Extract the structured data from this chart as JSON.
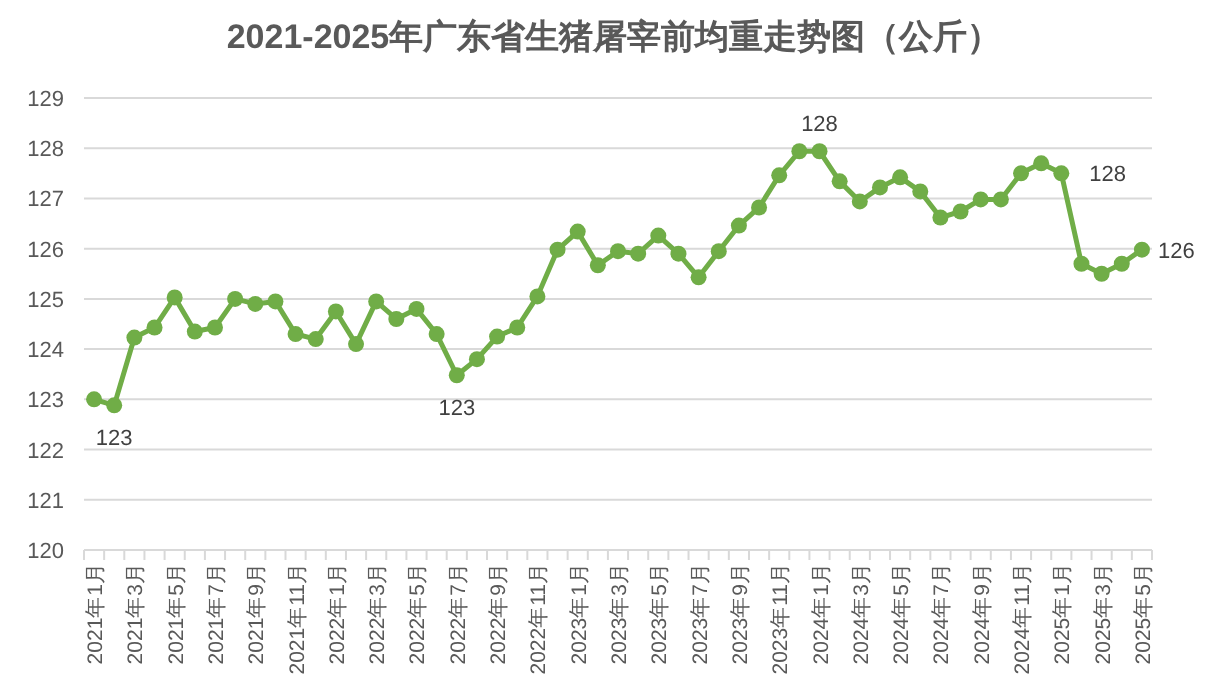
{
  "chart_data": {
    "type": "line",
    "title": "2021-2025年广东省生猪屠宰前均重走势图（公斤）",
    "categories": [
      "2021年1月",
      null,
      "2021年3月",
      null,
      "2021年5月",
      null,
      "2021年7月",
      null,
      "2021年9月",
      null,
      "2021年11月",
      null,
      "2022年1月",
      null,
      "2022年3月",
      null,
      "2022年5月",
      null,
      "2022年7月",
      null,
      "2022年9月",
      null,
      "2022年11月",
      null,
      "2023年1月",
      null,
      "2023年3月",
      null,
      "2023年5月",
      null,
      "2023年7月",
      null,
      "2023年9月",
      null,
      "2023年11月",
      null,
      "2024年1月",
      null,
      "2024年3月",
      null,
      "2024年5月",
      null,
      "2024年7月",
      null,
      "2024年9月",
      null,
      "2024年11月",
      null,
      "2025年1月",
      null,
      "2025年3月",
      null,
      "2025年5月"
    ],
    "series": [
      {
        "color": "#70ad47",
        "values": [
          123.0,
          122.88,
          124.23,
          124.43,
          125.03,
          124.35,
          124.43,
          125.0,
          124.9,
          124.95,
          124.3,
          124.2,
          124.75,
          124.1,
          124.95,
          124.6,
          124.8,
          124.3,
          123.48,
          123.8,
          124.25,
          124.43,
          125.05,
          125.98,
          126.34,
          125.67,
          125.95,
          125.9,
          126.26,
          125.9,
          125.43,
          125.95,
          126.46,
          126.82,
          127.46,
          127.94,
          127.94,
          127.34,
          126.94,
          127.22,
          127.42,
          127.14,
          126.62,
          126.74,
          126.98,
          126.98,
          127.5,
          127.7,
          127.5,
          125.7,
          125.5,
          125.7,
          125.98
        ],
        "value_labels": [
          null,
          "123",
          null,
          null,
          null,
          null,
          null,
          null,
          null,
          null,
          null,
          null,
          null,
          null,
          null,
          null,
          null,
          null,
          "123",
          null,
          null,
          null,
          null,
          null,
          null,
          null,
          null,
          null,
          null,
          null,
          null,
          null,
          null,
          null,
          null,
          null,
          "128",
          null,
          null,
          null,
          null,
          null,
          null,
          null,
          null,
          null,
          null,
          null,
          "128",
          null,
          null,
          null,
          "126"
        ]
      }
    ],
    "ylim": [
      120,
      129
    ],
    "yticks": [
      120,
      121,
      122,
      123,
      124,
      125,
      126,
      127,
      128,
      129
    ],
    "grid": "y",
    "marker": "circle",
    "line_style": "solid"
  }
}
